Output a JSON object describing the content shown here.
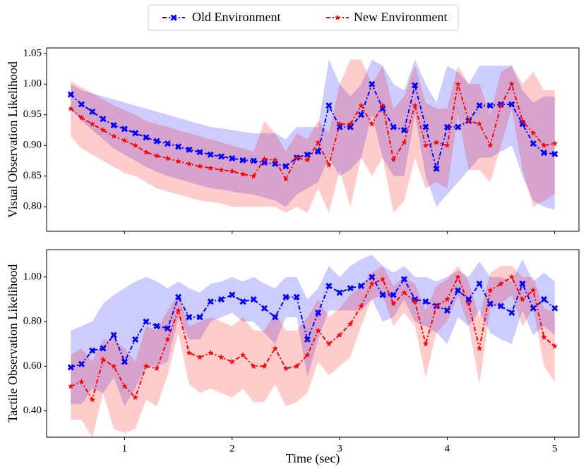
{
  "chart_data": [
    {
      "type": "line",
      "ylabel": "Visual Observation Likelihood",
      "x": [
        0.5,
        0.6,
        0.7,
        0.8,
        0.9,
        1.0,
        1.1,
        1.2,
        1.3,
        1.4,
        1.5,
        1.6,
        1.7,
        1.8,
        1.9,
        2.0,
        2.1,
        2.2,
        2.3,
        2.4,
        2.5,
        2.6,
        2.7,
        2.8,
        2.9,
        3.0,
        3.1,
        3.2,
        3.3,
        3.4,
        3.5,
        3.6,
        3.7,
        3.8,
        3.9,
        4.0,
        4.1,
        4.2,
        4.3,
        4.4,
        4.5,
        4.6,
        4.7,
        4.8,
        4.9,
        5.0
      ],
      "xlim": [
        0.275,
        5.225
      ],
      "xticks": [
        1,
        2,
        3,
        4,
        5
      ],
      "ylim": [
        0.76,
        1.059
      ],
      "yticks": [
        {
          "value": 0.8,
          "label": "0.80"
        },
        {
          "value": 0.85,
          "label": "0.85"
        },
        {
          "value": 0.9,
          "label": "0.90"
        },
        {
          "value": 0.95,
          "label": "0.95"
        },
        {
          "value": 1.0,
          "label": "1.00"
        },
        {
          "value": 1.05,
          "label": "1.05"
        }
      ],
      "series": [
        {
          "name": "Old Environment",
          "color": "#0000ff",
          "marker": "x",
          "values": [
            0.983,
            0.967,
            0.955,
            0.943,
            0.933,
            0.927,
            0.92,
            0.913,
            0.907,
            0.903,
            0.898,
            0.893,
            0.889,
            0.885,
            0.882,
            0.879,
            0.876,
            0.875,
            0.872,
            0.87,
            0.866,
            0.88,
            0.885,
            0.89,
            0.965,
            0.93,
            0.93,
            0.95,
            1.0,
            0.96,
            0.93,
            0.925,
            0.998,
            0.93,
            0.862,
            0.93,
            0.93,
            0.94,
            0.965,
            0.965,
            0.967,
            0.967,
            0.935,
            0.903,
            0.888,
            0.886
          ],
          "upper": [
            1.0,
            0.99,
            0.985,
            0.98,
            0.975,
            0.97,
            0.965,
            0.96,
            0.955,
            0.95,
            0.945,
            0.94,
            0.935,
            0.93,
            0.928,
            0.925,
            0.922,
            0.92,
            0.92,
            0.92,
            0.91,
            0.93,
            0.93,
            0.93,
            1.04,
            1.0,
            0.98,
            1.0,
            1.04,
            1.03,
            1.0,
            0.99,
            1.04,
            1.0,
            0.97,
            1.03,
            1.02,
            1.0,
            1.03,
            1.03,
            1.03,
            1.03,
            0.99,
            0.97,
            0.98,
            0.98
          ],
          "lower": [
            0.96,
            0.94,
            0.925,
            0.91,
            0.895,
            0.885,
            0.875,
            0.865,
            0.857,
            0.85,
            0.845,
            0.84,
            0.835,
            0.83,
            0.828,
            0.825,
            0.822,
            0.82,
            0.815,
            0.81,
            0.8,
            0.82,
            0.83,
            0.84,
            0.88,
            0.85,
            0.86,
            0.88,
            0.95,
            0.88,
            0.85,
            0.85,
            0.95,
            0.85,
            0.8,
            0.82,
            0.84,
            0.86,
            0.88,
            0.88,
            0.89,
            0.9,
            0.85,
            0.81,
            0.8,
            0.795
          ]
        },
        {
          "name": "New Environment",
          "color": "#ff0000",
          "marker": "star",
          "values": [
            0.96,
            0.945,
            0.935,
            0.925,
            0.915,
            0.908,
            0.9,
            0.889,
            0.883,
            0.879,
            0.874,
            0.87,
            0.866,
            0.863,
            0.86,
            0.858,
            0.853,
            0.85,
            0.878,
            0.876,
            0.845,
            0.88,
            0.876,
            0.905,
            0.868,
            0.935,
            0.935,
            0.965,
            0.935,
            0.965,
            0.877,
            0.905,
            0.965,
            0.9,
            0.905,
            0.9,
            1.0,
            0.94,
            0.935,
            0.9,
            0.965,
            1.0,
            0.94,
            0.92,
            0.9,
            0.903
          ],
          "upper": [
            1.005,
            0.995,
            0.985,
            0.975,
            0.965,
            0.958,
            0.95,
            0.94,
            0.935,
            0.93,
            0.925,
            0.92,
            0.915,
            0.91,
            0.905,
            0.9,
            0.895,
            0.89,
            0.94,
            0.92,
            0.89,
            0.92,
            0.91,
            0.94,
            0.92,
            1.0,
            1.04,
            1.04,
            1.0,
            1.03,
            0.96,
            0.98,
            1.03,
            0.97,
            0.96,
            0.96,
            1.03,
            1.0,
            1.0,
            0.95,
            1.02,
            1.03,
            1.0,
            1.02,
            0.99,
            0.99
          ],
          "lower": [
            0.915,
            0.895,
            0.885,
            0.875,
            0.865,
            0.855,
            0.85,
            0.84,
            0.83,
            0.825,
            0.82,
            0.815,
            0.81,
            0.808,
            0.805,
            0.8,
            0.8,
            0.8,
            0.8,
            0.8,
            0.79,
            0.8,
            0.79,
            0.83,
            0.79,
            0.86,
            0.8,
            0.88,
            0.85,
            0.88,
            0.79,
            0.81,
            0.88,
            0.83,
            0.84,
            0.83,
            0.95,
            0.86,
            0.86,
            0.84,
            0.9,
            0.96,
            0.86,
            0.8,
            0.81,
            0.82
          ]
        }
      ]
    },
    {
      "type": "line",
      "ylabel": "Tactile Observation Likelihood",
      "xlabel": "Time (sec)",
      "x": [
        0.5,
        0.6,
        0.7,
        0.8,
        0.9,
        1.0,
        1.1,
        1.2,
        1.3,
        1.4,
        1.5,
        1.6,
        1.7,
        1.8,
        1.9,
        2.0,
        2.1,
        2.2,
        2.3,
        2.4,
        2.5,
        2.6,
        2.7,
        2.8,
        2.9,
        3.0,
        3.1,
        3.2,
        3.3,
        3.4,
        3.5,
        3.6,
        3.7,
        3.8,
        3.9,
        4.0,
        4.1,
        4.2,
        4.3,
        4.4,
        4.5,
        4.6,
        4.7,
        4.8,
        4.9,
        5.0
      ],
      "xlim": [
        0.275,
        5.225
      ],
      "xticks": [
        1,
        2,
        3,
        4,
        5
      ],
      "ylim": [
        0.282,
        1.123
      ],
      "yticks": [
        {
          "value": 0.4,
          "label": "0.40"
        },
        {
          "value": 0.6,
          "label": "0.60"
        },
        {
          "value": 0.8,
          "label": "0.80"
        },
        {
          "value": 1.0,
          "label": "1.00"
        }
      ],
      "series": [
        {
          "color": "#0000ff",
          "marker": "x",
          "values": [
            0.595,
            0.61,
            0.67,
            0.68,
            0.74,
            0.62,
            0.72,
            0.8,
            0.78,
            0.77,
            0.91,
            0.82,
            0.82,
            0.89,
            0.9,
            0.92,
            0.89,
            0.9,
            0.86,
            0.82,
            0.91,
            0.91,
            0.72,
            0.84,
            0.96,
            0.93,
            0.95,
            0.96,
            1.0,
            0.92,
            0.92,
            0.99,
            0.9,
            0.89,
            0.87,
            0.85,
            0.94,
            0.9,
            0.97,
            0.88,
            0.87,
            0.84,
            0.97,
            0.86,
            0.9,
            0.86
          ],
          "upper": [
            0.76,
            0.78,
            0.8,
            0.88,
            0.92,
            0.95,
            0.98,
            1.0,
            0.98,
            0.95,
            0.98,
            0.95,
            0.93,
            0.97,
            0.98,
            1.0,
            0.98,
            1.0,
            0.97,
            0.95,
            1.0,
            1.0,
            0.9,
            0.95,
            1.05,
            1.0,
            1.05,
            1.08,
            1.1,
            1.05,
            1.02,
            1.05,
            1.0,
            1.0,
            0.98,
            1.0,
            1.03,
            1.0,
            1.07,
            1.0,
            1.0,
            0.98,
            1.08,
            0.98,
            1.02,
            0.98
          ],
          "lower": [
            0.43,
            0.43,
            0.5,
            0.48,
            0.55,
            0.42,
            0.5,
            0.6,
            0.6,
            0.62,
            0.82,
            0.72,
            0.72,
            0.8,
            0.82,
            0.84,
            0.8,
            0.8,
            0.75,
            0.7,
            0.82,
            0.82,
            0.55,
            0.72,
            0.85,
            0.85,
            0.85,
            0.85,
            0.9,
            0.8,
            0.82,
            0.9,
            0.8,
            0.78,
            0.75,
            0.7,
            0.82,
            0.78,
            0.85,
            0.75,
            0.72,
            0.7,
            0.85,
            0.74,
            0.78,
            0.74
          ]
        },
        {
          "color": "#ff0000",
          "marker": "star",
          "values": [
            0.51,
            0.53,
            0.45,
            0.63,
            0.6,
            0.51,
            0.46,
            0.6,
            0.59,
            0.72,
            0.85,
            0.66,
            0.64,
            0.66,
            0.64,
            0.62,
            0.65,
            0.6,
            0.6,
            0.68,
            0.59,
            0.6,
            0.65,
            0.76,
            0.7,
            0.74,
            0.79,
            0.87,
            0.97,
            0.99,
            0.88,
            0.93,
            0.89,
            0.7,
            0.87,
            0.9,
            1.0,
            0.88,
            0.68,
            0.94,
            0.97,
            1.0,
            0.9,
            0.94,
            0.73,
            0.69
          ],
          "upper": [
            0.65,
            0.68,
            0.62,
            0.72,
            0.72,
            0.68,
            0.62,
            0.78,
            0.76,
            0.85,
            0.92,
            0.78,
            0.8,
            0.82,
            0.8,
            0.78,
            0.82,
            0.76,
            0.76,
            0.84,
            0.76,
            0.76,
            0.82,
            0.9,
            0.82,
            0.86,
            0.92,
            0.96,
            1.02,
            1.05,
            0.96,
            1.0,
            0.97,
            0.85,
            0.96,
            0.99,
            1.05,
            0.98,
            0.82,
            1.02,
            1.05,
            1.05,
            1.0,
            1.0,
            0.86,
            0.84
          ],
          "lower": [
            0.36,
            0.36,
            0.28,
            0.48,
            0.32,
            0.3,
            0.32,
            0.45,
            0.42,
            0.56,
            0.75,
            0.52,
            0.48,
            0.5,
            0.48,
            0.46,
            0.5,
            0.44,
            0.44,
            0.52,
            0.42,
            0.44,
            0.48,
            0.62,
            0.56,
            0.6,
            0.64,
            0.78,
            0.9,
            0.92,
            0.78,
            0.84,
            0.78,
            0.55,
            0.75,
            0.8,
            0.92,
            0.78,
            0.52,
            0.86,
            0.88,
            0.92,
            0.78,
            0.86,
            0.6,
            0.53
          ]
        }
      ]
    }
  ]
}
